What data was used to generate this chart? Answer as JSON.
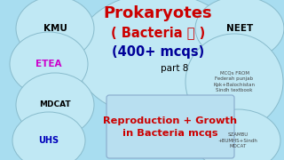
{
  "bg_color": "#a8ddf0",
  "title_line1": "Prokaryotes",
  "title_line2": "( Bacteria 🦠 )",
  "title_line3": "(400+ mcqs)",
  "title_color1": "#cc0000",
  "title_color2": "#cc0000",
  "title_color3": "#000099",
  "part_text": "part 8",
  "part_color": "#000000",
  "subtitle": "Reproduction + Growth\nin Bacteria mcqs",
  "subtitle_color": "#cc0000",
  "circle_face": "#c0e8f4",
  "circle_edge": "#88bbcc",
  "mcqs_from_text": "MCQs FROM\nFederah punjab\nKpk+Balochistan\nSindh textbook",
  "szambu_text": "SZAMBU\n+BUMHS+Sindh\nMDCAT",
  "small_text_color": "#444444"
}
